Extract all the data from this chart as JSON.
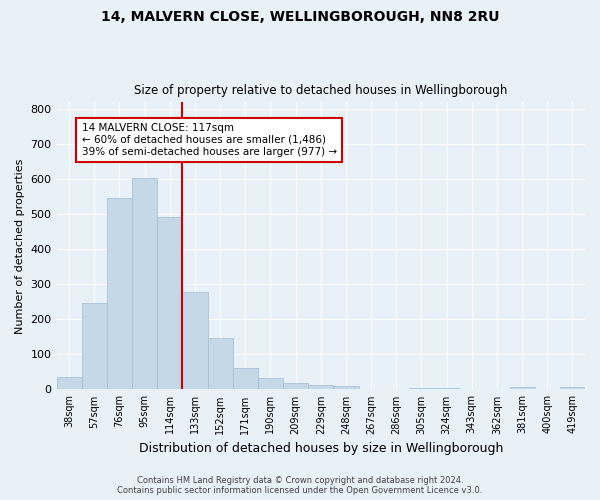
{
  "title1": "14, MALVERN CLOSE, WELLINGBOROUGH, NN8 2RU",
  "title2": "Size of property relative to detached houses in Wellingborough",
  "xlabel": "Distribution of detached houses by size in Wellingborough",
  "ylabel": "Number of detached properties",
  "bin_labels": [
    "38sqm",
    "57sqm",
    "76sqm",
    "95sqm",
    "114sqm",
    "133sqm",
    "152sqm",
    "171sqm",
    "190sqm",
    "209sqm",
    "229sqm",
    "248sqm",
    "267sqm",
    "286sqm",
    "305sqm",
    "324sqm",
    "343sqm",
    "362sqm",
    "381sqm",
    "400sqm",
    "419sqm"
  ],
  "bar_heights": [
    35,
    248,
    548,
    605,
    493,
    278,
    148,
    60,
    32,
    18,
    13,
    10,
    2,
    0,
    5,
    5,
    0,
    0,
    8,
    0,
    8
  ],
  "bar_color": "#c5d8e8",
  "bar_edgecolor": "#a0bcd4",
  "property_line_label": "14 MALVERN CLOSE: 117sqm",
  "annotation_line1": "← 60% of detached houses are smaller (1,486)",
  "annotation_line2": "39% of semi-detached houses are larger (977) →",
  "annotation_box_color": "#ffffff",
  "annotation_box_edgecolor": "#cc0000",
  "vline_color": "#cc0000",
  "ylim": [
    0,
    820
  ],
  "background_color": "#e8f0f8",
  "footer_line1": "Contains HM Land Registry data © Crown copyright and database right 2024.",
  "footer_line2": "Contains public sector information licensed under the Open Government Licence v3.0."
}
